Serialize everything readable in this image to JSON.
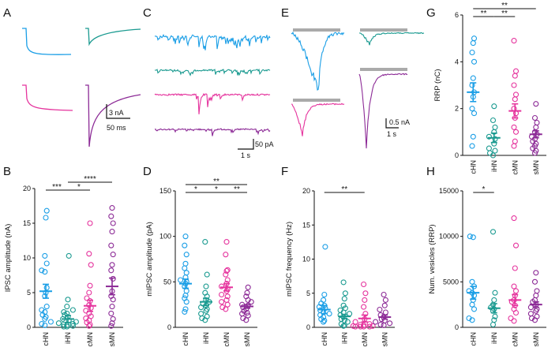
{
  "colors": {
    "cHN": "#1a9ee6",
    "iHN": "#1a9a90",
    "cMN": "#e5339d",
    "sMN": "#8c2a96",
    "bar": "#aaaaaa"
  },
  "groups": [
    "cHN",
    "iHN",
    "cMN",
    "sMN"
  ],
  "panels": {
    "A": "A",
    "B": "B",
    "C": "C",
    "D": "D",
    "E": "E",
    "F": "F",
    "G": "G",
    "H": "H"
  },
  "scalebars": {
    "A_y": "3 nA",
    "A_x": "50 ms",
    "C_y": "50 pA",
    "C_x": "1 s",
    "E_y": "0.5 nA",
    "E_x": "1 s"
  },
  "chart_data": [
    {
      "panel": "B",
      "type": "scatter",
      "ylabel": "IPSC amplitude (nA)",
      "ylim": [
        0,
        20
      ],
      "yticks": [
        0,
        5,
        10,
        15,
        20
      ],
      "categories": [
        "cHN",
        "iHN",
        "cMN",
        "sMN"
      ],
      "means": [
        5.2,
        1.2,
        3.1,
        5.9
      ],
      "sems": [
        1.0,
        0.5,
        0.8,
        1.2
      ],
      "points": [
        [
          16.8,
          15.8,
          10.3,
          9.2,
          8.2,
          8.0,
          5.7,
          5.0,
          4.5,
          3.0,
          2.5,
          2.2,
          1.8,
          1.5,
          1.2,
          0.8,
          0.5,
          0.3
        ],
        [
          10.3,
          4.0,
          3.0,
          2.5,
          2.2,
          2.0,
          1.8,
          1.5,
          1.2,
          1.0,
          0.8,
          0.6,
          0.5,
          0.4,
          0.3,
          0.2,
          0.1,
          0.1
        ],
        [
          15.0,
          10.6,
          9.0,
          6.0,
          5.0,
          4.2,
          3.8,
          3.2,
          2.8,
          2.4,
          2.0,
          1.6,
          1.3,
          1.0,
          0.7,
          0.4,
          0.2
        ],
        [
          17.2,
          16.0,
          15.0,
          13.8,
          11.8,
          10.5,
          9.0,
          8.2,
          7.0,
          5.2,
          4.5,
          4.0,
          3.0,
          2.0,
          1.2,
          0.6,
          0.2
        ]
      ],
      "significance": [
        {
          "from": 0,
          "to": 1,
          "label": "***",
          "level": 0
        },
        {
          "from": 1,
          "to": 2,
          "label": "*",
          "level": 1
        },
        {
          "from": 1,
          "to": 3,
          "label": "****",
          "level": 2
        }
      ]
    },
    {
      "panel": "D",
      "type": "scatter",
      "ylabel": "mIPSC amplitude (pA)",
      "ylim": [
        0,
        150
      ],
      "yticks": [
        0,
        50,
        100,
        150
      ],
      "categories": [
        "cHN",
        "iHN",
        "cMN",
        "sMN"
      ],
      "means": [
        48,
        28,
        44,
        23
      ],
      "sems": [
        5,
        4,
        4,
        2
      ],
      "points": [
        [
          100,
          90,
          80,
          70,
          65,
          60,
          55,
          52,
          50,
          48,
          45,
          40,
          35,
          32,
          28,
          20,
          17
        ],
        [
          94,
          58,
          45,
          38,
          34,
          30,
          28,
          26,
          24,
          22,
          20,
          18,
          15,
          12,
          10,
          8
        ],
        [
          94,
          80,
          63,
          62,
          58,
          52,
          48,
          45,
          42,
          40,
          36,
          34,
          30,
          28,
          25,
          22,
          20
        ],
        [
          44,
          38,
          34,
          30,
          28,
          25,
          24,
          22,
          20,
          18,
          16,
          15,
          13,
          10,
          8
        ]
      ],
      "significance": [
        {
          "from": 0,
          "to": 1,
          "label": "*",
          "level": 1
        },
        {
          "from": 1,
          "to": 2,
          "label": "*",
          "level": 1
        },
        {
          "from": 2,
          "to": 3,
          "label": "**",
          "level": 1
        },
        {
          "from": 0,
          "to": 3,
          "label": "**",
          "level": 2
        }
      ]
    },
    {
      "panel": "F",
      "type": "scatter",
      "ylabel": "mIPSC frequency (Hz)",
      "ylim": [
        0,
        20
      ],
      "yticks": [
        0,
        5,
        10,
        15,
        20
      ],
      "categories": [
        "cHN",
        "iHN",
        "cMN",
        "sMN"
      ],
      "means": [
        2.6,
        1.6,
        1.3,
        1.5
      ],
      "sems": [
        0.6,
        0.3,
        0.5,
        0.3
      ],
      "points": [
        [
          11.8,
          4.8,
          4.0,
          3.5,
          3.2,
          3.0,
          2.8,
          2.5,
          2.2,
          2.0,
          1.8,
          1.5,
          1.2,
          1.0,
          0.8
        ],
        [
          6.6,
          5.0,
          4.2,
          3.2,
          2.8,
          2.5,
          2.2,
          2.0,
          1.8,
          1.5,
          1.2,
          1.0,
          0.8,
          0.5,
          0.3,
          0.2
        ],
        [
          6.3,
          5.0,
          4.0,
          3.0,
          2.0,
          1.2,
          0.8,
          0.5,
          0.4,
          0.3,
          0.2,
          0.2,
          0.1,
          0.1,
          0.1,
          0.1
        ],
        [
          4.8,
          4.0,
          3.2,
          2.6,
          2.2,
          1.8,
          1.5,
          1.2,
          1.0,
          0.8,
          0.6,
          0.4,
          0.3
        ]
      ],
      "significance": [
        {
          "from": 0,
          "to": 2,
          "label": "**",
          "level": 1
        }
      ]
    },
    {
      "panel": "G",
      "type": "scatter",
      "ylabel": "RRP (nC)",
      "ylim": [
        0,
        6
      ],
      "yticks": [
        0,
        2,
        4,
        6
      ],
      "categories": [
        "cHN",
        "iHN",
        "cMN",
        "sMN"
      ],
      "means": [
        2.7,
        0.75,
        1.9,
        0.9
      ],
      "sems": [
        0.4,
        0.2,
        0.3,
        0.15
      ],
      "points": [
        [
          5.0,
          4.8,
          4.4,
          4.0,
          3.3,
          3.0,
          2.7,
          2.5,
          2.0,
          1.8,
          0.8,
          0.4
        ],
        [
          2.1,
          1.5,
          1.2,
          1.0,
          0.8,
          0.7,
          0.5,
          0.3,
          0.2,
          0.1,
          0.0
        ],
        [
          4.9,
          3.6,
          3.4,
          3.0,
          2.6,
          2.4,
          2.0,
          1.8,
          1.6,
          1.2,
          1.0,
          0.6,
          0.4
        ],
        [
          2.2,
          1.6,
          1.4,
          1.2,
          1.0,
          0.9,
          0.8,
          0.7,
          0.6,
          0.5,
          0.4,
          0.3,
          0.2,
          0.1
        ]
      ],
      "significance": [
        {
          "from": 0,
          "to": 1,
          "label": "**",
          "level": 1
        },
        {
          "from": 1,
          "to": 2,
          "label": "**",
          "level": 1
        },
        {
          "from": 0,
          "to": 3,
          "label": "**",
          "level": 2
        }
      ]
    },
    {
      "panel": "H",
      "type": "scatter",
      "ylabel": "Num. vesicles (RRP)",
      "ylim": [
        0,
        15000
      ],
      "yticks": [
        0,
        5000,
        10000,
        15000
      ],
      "categories": [
        "cHN",
        "iHN",
        "cMN",
        "sMN"
      ],
      "means": [
        3800,
        2100,
        3000,
        2500
      ],
      "sems": [
        700,
        500,
        600,
        300
      ],
      "points": [
        [
          10000,
          9900,
          5000,
          4500,
          4000,
          3800,
          3500,
          3000,
          2500,
          2000,
          1000,
          800
        ],
        [
          10500,
          3800,
          3000,
          2500,
          2200,
          2000,
          1800,
          1200,
          800,
          300
        ],
        [
          12000,
          9000,
          6500,
          4500,
          4000,
          3500,
          3000,
          2800,
          2400,
          2000,
          1600,
          1000,
          700
        ],
        [
          6000,
          5000,
          4000,
          3500,
          3000,
          2800,
          2500,
          2200,
          2000,
          1800,
          1500,
          1200,
          1000,
          800
        ]
      ],
      "significance": [
        {
          "from": 0,
          "to": 1,
          "label": "*",
          "level": 1
        }
      ]
    }
  ]
}
